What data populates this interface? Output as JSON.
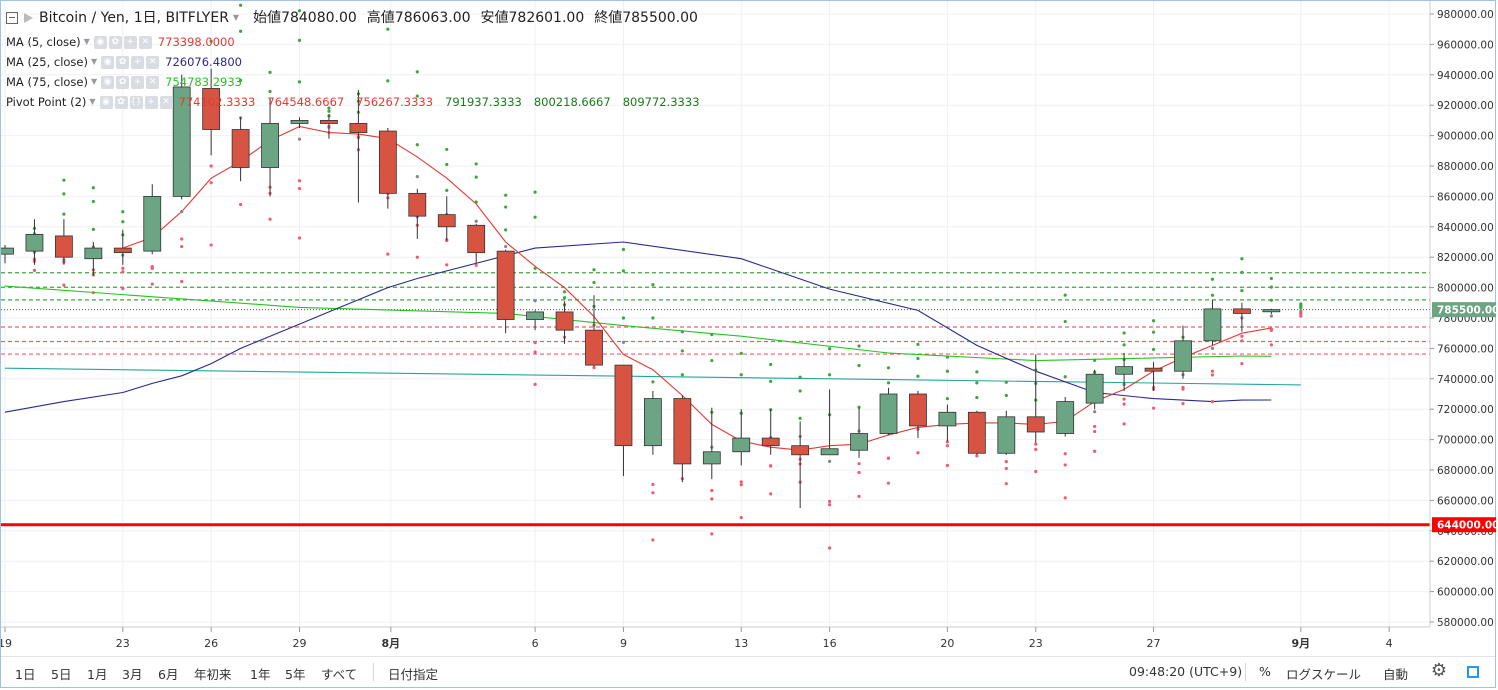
{
  "header": {
    "symbol": "Bitcoin / Yen, 1日, BITFLYER",
    "ohlc": [
      {
        "label": "始値",
        "value": "784080.00"
      },
      {
        "label": "高値",
        "value": "786063.00"
      },
      {
        "label": "安値",
        "value": "782601.00"
      },
      {
        "label": "終値",
        "value": "785500.00"
      }
    ]
  },
  "indicators": [
    {
      "name": "MA (5, close)",
      "value": "773398.0000",
      "color": "#e53935"
    },
    {
      "name": "MA (25, close)",
      "value": "726076.4800",
      "color": "#2a2a8c"
    },
    {
      "name": "MA (75, close)",
      "value": "754783.2933",
      "color": "#22c51e"
    }
  ],
  "pivot": {
    "name": "Pivot Point (2)",
    "values": [
      {
        "value": "774102.3333",
        "color": "#e53935"
      },
      {
        "value": "764548.6667",
        "color": "#e53935"
      },
      {
        "value": "756267.3333",
        "color": "#e53935"
      },
      {
        "value": "791937.3333",
        "color": "#1b7a1b"
      },
      {
        "value": "800218.6667",
        "color": "#1b7a1b"
      },
      {
        "value": "809772.3333",
        "color": "#1b7a1b"
      }
    ]
  },
  "chart_data": {
    "type": "candlestick",
    "ylim": [
      575000,
      985000
    ],
    "y_ticks": [
      "980000.00",
      "960000.00",
      "940000.00",
      "920000.00",
      "900000.00",
      "880000.00",
      "860000.00",
      "840000.00",
      "820000.00",
      "800000.00",
      "780000.00",
      "760000.00",
      "740000.00",
      "720000.00",
      "700000.00",
      "680000.00",
      "660000.00",
      "640000.00",
      "620000.00",
      "600000.00",
      "580000.00"
    ],
    "x_ticks": [
      "19",
      "23",
      "26",
      "29",
      "8月",
      "6",
      "9",
      "13",
      "16",
      "20",
      "23",
      "27",
      "9月",
      "4"
    ],
    "x_tick_index": [
      0,
      4,
      7,
      10,
      13,
      18,
      21,
      25,
      28,
      32,
      35,
      39,
      44,
      47
    ],
    "candles": [
      {
        "o": 822000,
        "h": 828000,
        "l": 816000,
        "c": 826000
      },
      {
        "o": 824000,
        "h": 845000,
        "l": 815000,
        "c": 835000
      },
      {
        "o": 834000,
        "h": 845000,
        "l": 815000,
        "c": 820000
      },
      {
        "o": 819000,
        "h": 830000,
        "l": 808000,
        "c": 826000
      },
      {
        "o": 826000,
        "h": 838000,
        "l": 815000,
        "c": 823000
      },
      {
        "o": 824000,
        "h": 868000,
        "l": 822000,
        "c": 860000
      },
      {
        "o": 860000,
        "h": 940000,
        "l": 858000,
        "c": 932000
      },
      {
        "o": 931000,
        "h": 944000,
        "l": 887000,
        "c": 904000
      },
      {
        "o": 904000,
        "h": 912000,
        "l": 870000,
        "c": 879000
      },
      {
        "o": 879000,
        "h": 925000,
        "l": 860000,
        "c": 908000
      },
      {
        "o": 908000,
        "h": 912000,
        "l": 905000,
        "c": 910000
      },
      {
        "o": 910000,
        "h": 914000,
        "l": 898000,
        "c": 908000
      },
      {
        "o": 908000,
        "h": 930000,
        "l": 856000,
        "c": 902000
      },
      {
        "o": 903000,
        "h": 905000,
        "l": 852000,
        "c": 862000
      },
      {
        "o": 862000,
        "h": 865000,
        "l": 832000,
        "c": 847000
      },
      {
        "o": 848000,
        "h": 860000,
        "l": 831000,
        "c": 840000
      },
      {
        "o": 841000,
        "h": 842000,
        "l": 816000,
        "c": 823000
      },
      {
        "o": 824000,
        "h": 825000,
        "l": 770000,
        "c": 779000
      },
      {
        "o": 779000,
        "h": 785000,
        "l": 772000,
        "c": 784000
      },
      {
        "o": 784000,
        "h": 791000,
        "l": 763000,
        "c": 772000
      },
      {
        "o": 772000,
        "h": 795000,
        "l": 748000,
        "c": 749000
      },
      {
        "o": 749000,
        "h": 749000,
        "l": 676000,
        "c": 696000
      },
      {
        "o": 696000,
        "h": 732000,
        "l": 690000,
        "c": 727000
      },
      {
        "o": 727000,
        "h": 729000,
        "l": 672000,
        "c": 684000
      },
      {
        "o": 684000,
        "h": 721000,
        "l": 674000,
        "c": 692000
      },
      {
        "o": 692000,
        "h": 720000,
        "l": 683000,
        "c": 701000
      },
      {
        "o": 701000,
        "h": 720000,
        "l": 690000,
        "c": 696000
      },
      {
        "o": 696000,
        "h": 712000,
        "l": 655000,
        "c": 690000
      },
      {
        "o": 690000,
        "h": 733000,
        "l": 690000,
        "c": 694000
      },
      {
        "o": 693000,
        "h": 721000,
        "l": 688000,
        "c": 704000
      },
      {
        "o": 704000,
        "h": 734000,
        "l": 703000,
        "c": 730000
      },
      {
        "o": 730000,
        "h": 732000,
        "l": 701000,
        "c": 709000
      },
      {
        "o": 709000,
        "h": 723000,
        "l": 699000,
        "c": 718000
      },
      {
        "o": 718000,
        "h": 719000,
        "l": 690000,
        "c": 691000
      },
      {
        "o": 691000,
        "h": 719000,
        "l": 690000,
        "c": 715000
      },
      {
        "o": 715000,
        "h": 756000,
        "l": 698000,
        "c": 705000
      },
      {
        "o": 704000,
        "h": 728000,
        "l": 702000,
        "c": 725000
      },
      {
        "o": 724000,
        "h": 746000,
        "l": 720000,
        "c": 743000
      },
      {
        "o": 743000,
        "h": 757000,
        "l": 732000,
        "c": 748000
      },
      {
        "o": 747000,
        "h": 751000,
        "l": 732000,
        "c": 745000
      },
      {
        "o": 745000,
        "h": 775000,
        "l": 740000,
        "c": 765000
      },
      {
        "o": 765000,
        "h": 792000,
        "l": 762000,
        "c": 786000
      },
      {
        "o": 786000,
        "h": 790000,
        "l": 771000,
        "c": 783000
      },
      {
        "o": 784080,
        "h": 786063,
        "l": 782601,
        "c": 785500
      }
    ],
    "ma5": [
      null,
      null,
      null,
      null,
      826000,
      833000,
      850000,
      872000,
      883000,
      897000,
      906000,
      902000,
      901000,
      898000,
      886000,
      872000,
      855000,
      830000,
      814000,
      800000,
      781000,
      756000,
      746000,
      729000,
      710000,
      699000,
      695000,
      693000,
      696000,
      697000,
      703000,
      708000,
      710000,
      711000,
      711000,
      710000,
      712000,
      725000,
      733000,
      745000,
      754000,
      762000,
      770000,
      773398
    ],
    "ma25": [
      718000,
      726000,
      734000,
      741000,
      750000,
      760000,
      770000,
      778000,
      786000,
      794000,
      801000,
      807000,
      812000,
      816000,
      820000,
      824000,
      827000,
      830000,
      832000,
      831000,
      832000,
      830000,
      826000,
      819000,
      812000,
      804000,
      796000,
      790000,
      783000,
      773000,
      765000,
      756000,
      748000,
      740000,
      732000,
      726000,
      723000,
      730000,
      728000,
      725000,
      726076
    ],
    "ma75_x": [
      0,
      10,
      17,
      21,
      25,
      30,
      35,
      42,
      43
    ],
    "ma75": [
      801000,
      787000,
      783000,
      775000,
      768000,
      757000,
      752000,
      755000,
      754783
    ],
    "ma200_x": [
      0,
      44
    ],
    "ma200": [
      747000,
      736000
    ],
    "pivot_red": [
      774102.3333,
      764548.6667,
      756267.3333
    ],
    "pivot_green": [
      791937.3333,
      800218.6667,
      809772.3333
    ],
    "support_level": 644000,
    "last_price": 785500,
    "price_label": "785500.00",
    "support_label": "644000.00"
  },
  "bottombar": {
    "ranges": [
      "1日",
      "5日",
      "1月",
      "3月",
      "6月",
      "年初来",
      "1年",
      "5年",
      "すべて"
    ],
    "goto": "日付指定",
    "time": "09:48:20 (UTC+9)",
    "percent": "%",
    "log": "ログスケール",
    "auto": "自動"
  },
  "colors": {
    "up": "#6ba583",
    "down": "#d75442",
    "pivotRed": "#f25a72",
    "pivotGreen": "#3fa63f",
    "support": "#ff0000"
  }
}
